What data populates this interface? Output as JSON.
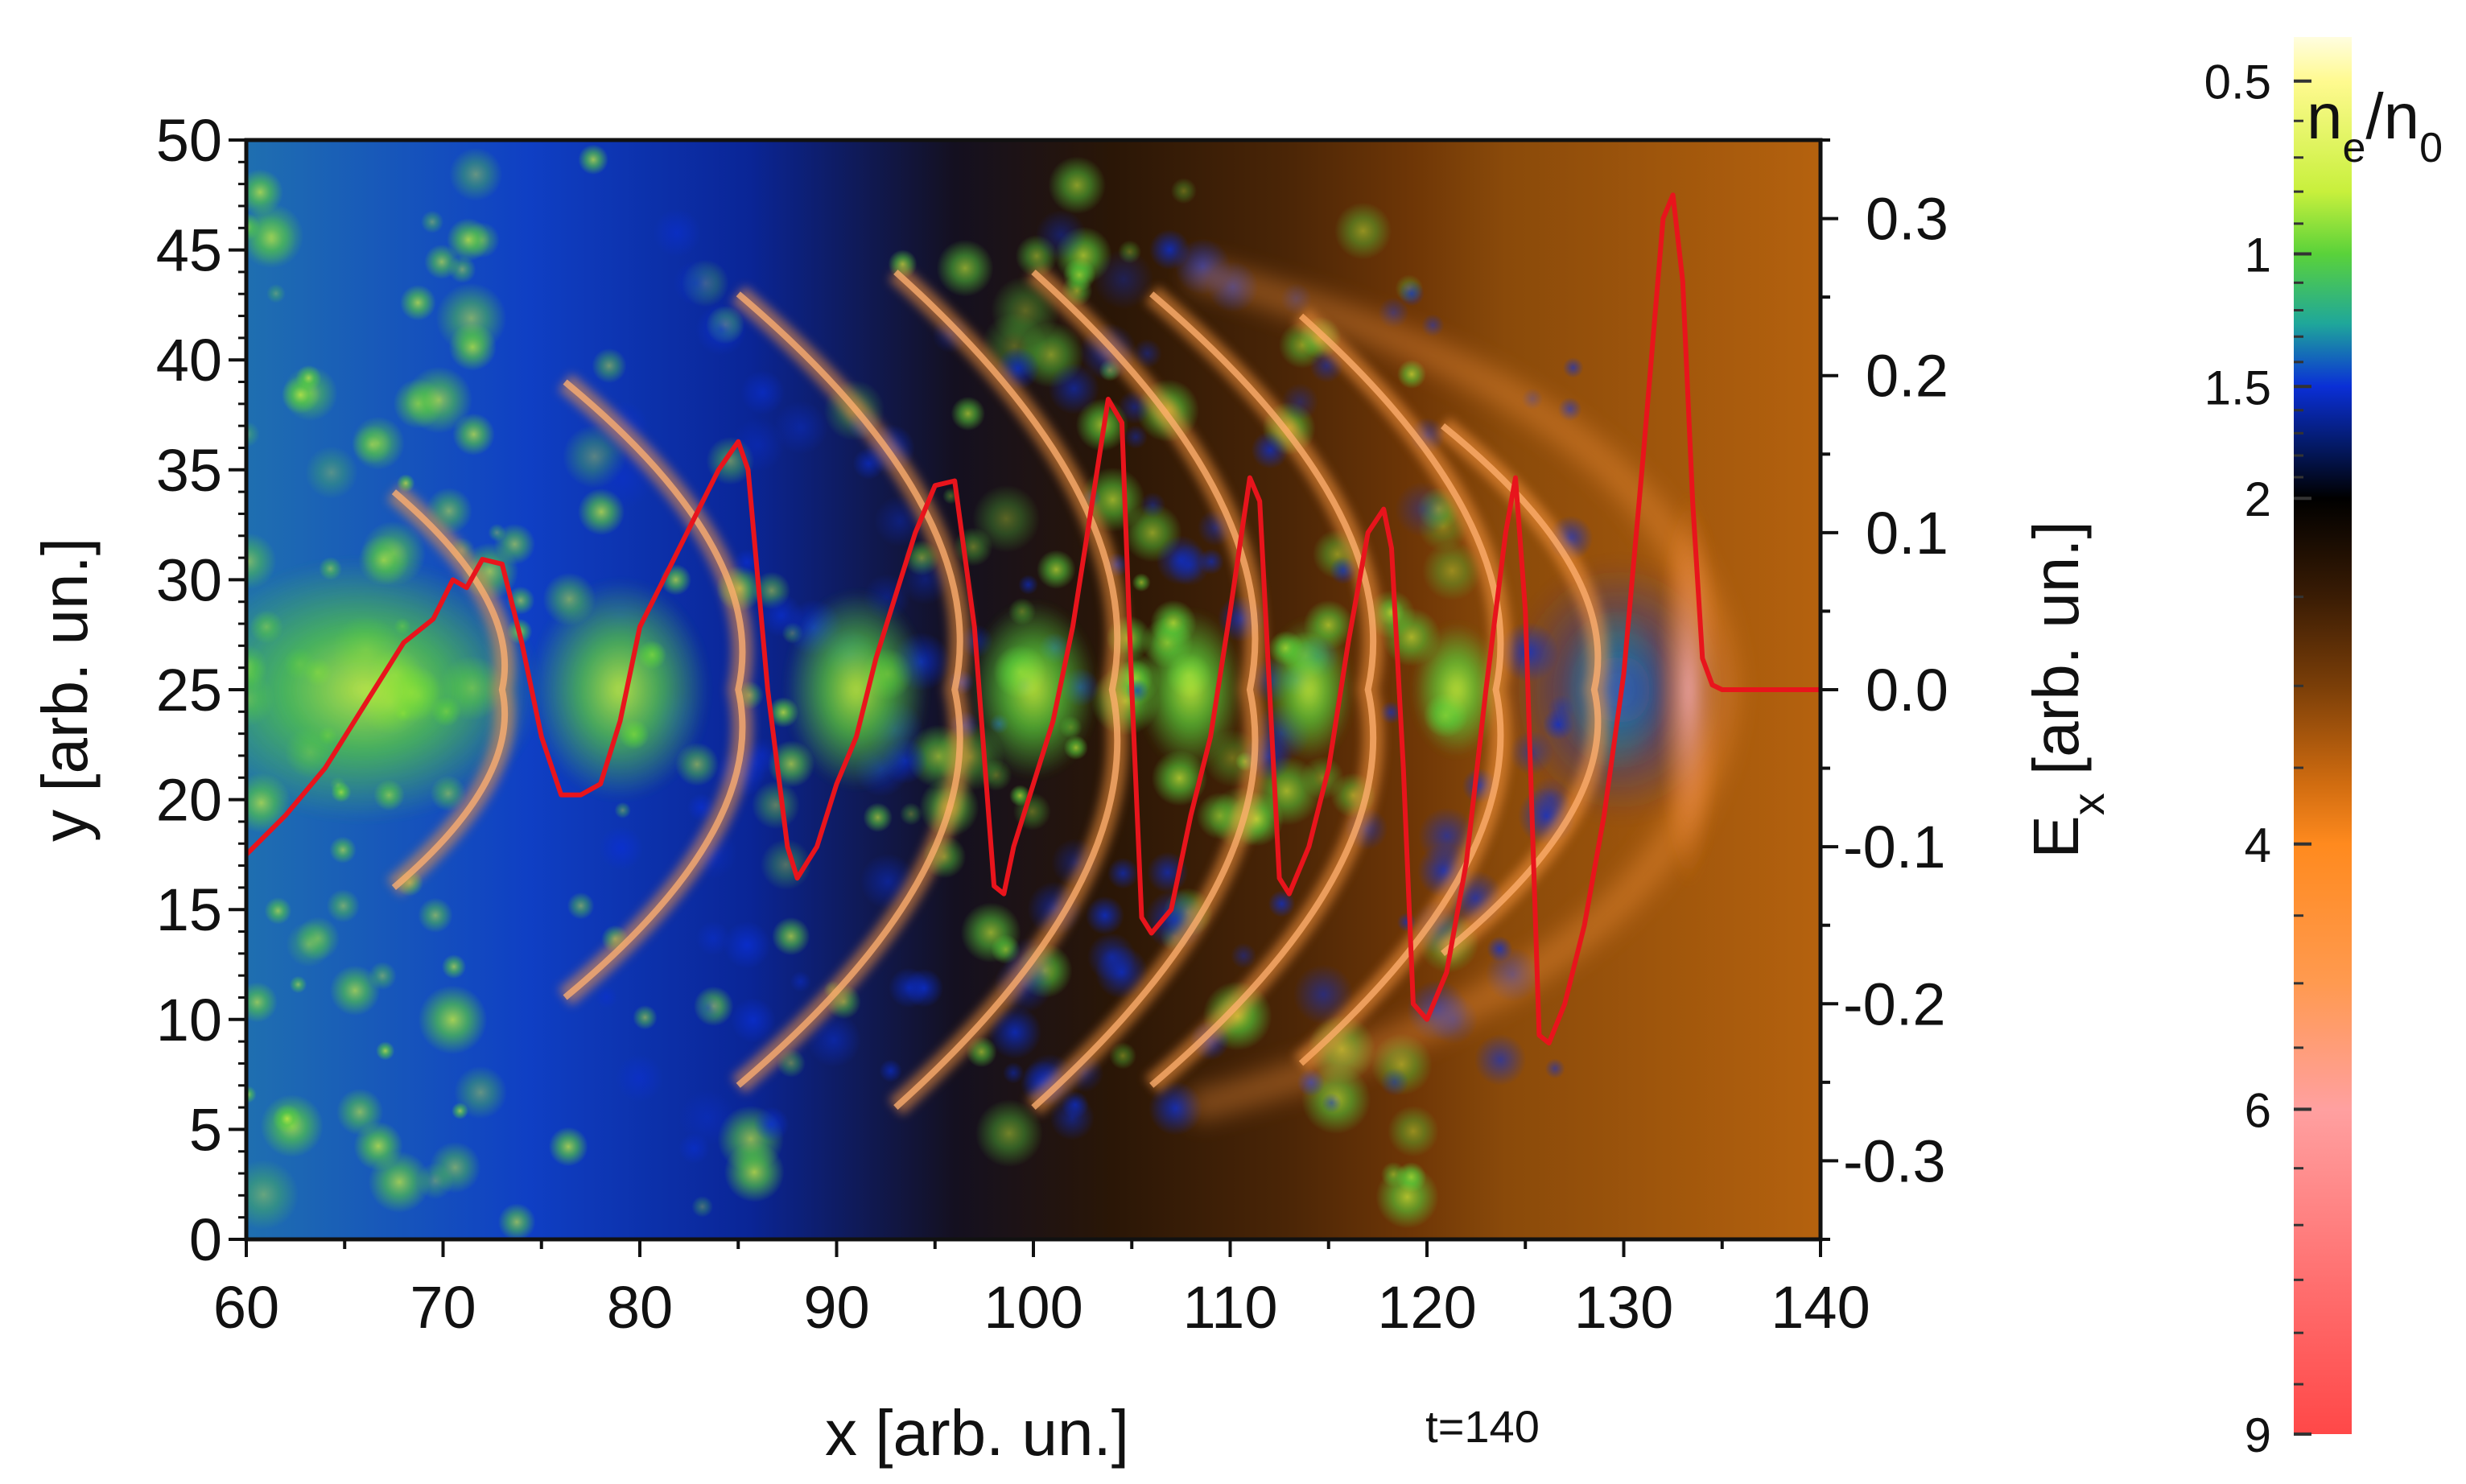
{
  "chart_data": {
    "type": "heatmap",
    "title": "",
    "time_label": "t=140",
    "x_axis": {
      "label": "x [arb. un.]",
      "range": [
        60,
        140
      ],
      "ticks": [
        60,
        70,
        80,
        90,
        100,
        110,
        120,
        130,
        140
      ]
    },
    "y_axis": {
      "label": "y [arb. un.]",
      "range": [
        0,
        50
      ],
      "ticks": [
        0,
        5,
        10,
        15,
        20,
        25,
        30,
        35,
        40,
        45,
        50
      ]
    },
    "y2_axis": {
      "label_main": "E",
      "label_sub": "x",
      "label_rest": " [arb. un.]",
      "range": [
        -0.35,
        0.35
      ],
      "ticks": [
        -0.3,
        -0.2,
        -0.1,
        0.0,
        0.1,
        0.2,
        0.3
      ]
    },
    "colorbar": {
      "label_main": "n",
      "label_sub_1": "e",
      "label_mid": "/n",
      "label_sub_2": "0",
      "scale": "sqrt",
      "range": [
        0.4,
        9
      ],
      "ticks": [
        0.5,
        1,
        1.5,
        2,
        4,
        6,
        9
      ],
      "colors": [
        {
          "v": 0.4,
          "c": "#fffde0"
        },
        {
          "v": 0.5,
          "c": "#fffa90"
        },
        {
          "v": 0.8,
          "c": "#c8f03c"
        },
        {
          "v": 1.0,
          "c": "#5ad23a"
        },
        {
          "v": 1.25,
          "c": "#1fa79a"
        },
        {
          "v": 1.5,
          "c": "#0a2fd6"
        },
        {
          "v": 1.75,
          "c": "#041a68"
        },
        {
          "v": 2.0,
          "c": "#000000"
        },
        {
          "v": 2.5,
          "c": "#3a1c04"
        },
        {
          "v": 3.0,
          "c": "#7a3e08"
        },
        {
          "v": 3.6,
          "c": "#d06c10"
        },
        {
          "v": 4.0,
          "c": "#ff8a1e"
        },
        {
          "v": 5.0,
          "c": "#ff9a50"
        },
        {
          "v": 6.0,
          "c": "#ffa0a0"
        },
        {
          "v": 7.5,
          "c": "#ff7070"
        },
        {
          "v": 9.0,
          "c": "#ff4848"
        }
      ]
    },
    "series": [
      {
        "axis": "y2",
        "color": "#e8141c",
        "x": [
          60,
          62,
          64,
          66,
          68,
          69.5,
          70.5,
          71.2,
          72,
          73,
          74,
          75,
          76,
          77,
          78,
          79,
          80,
          81,
          82,
          83,
          84,
          85,
          85.5,
          86.5,
          87.5,
          88,
          89,
          90,
          91,
          92,
          93,
          94,
          95,
          96,
          97,
          98,
          98.5,
          99,
          100,
          101,
          102,
          103,
          103.8,
          104.5,
          105,
          105.5,
          106,
          107,
          108,
          109,
          110,
          111,
          111.5,
          112,
          112.5,
          113,
          114,
          115,
          116,
          117,
          117.8,
          118.2,
          118.8,
          119.3,
          120,
          121,
          122,
          123,
          124,
          124.5,
          125,
          125.7,
          126.2,
          127,
          128,
          129,
          130,
          131,
          132,
          132.5,
          133,
          133.5,
          134,
          134.5,
          135,
          136,
          138,
          140
        ],
        "y": [
          -0.105,
          -0.08,
          -0.05,
          -0.01,
          0.03,
          0.045,
          0.07,
          0.065,
          0.083,
          0.08,
          0.03,
          -0.03,
          -0.067,
          -0.067,
          -0.06,
          -0.02,
          0.04,
          0.065,
          0.09,
          0.115,
          0.14,
          0.158,
          0.14,
          0.0,
          -0.1,
          -0.12,
          -0.1,
          -0.06,
          -0.03,
          0.02,
          0.06,
          0.1,
          0.13,
          0.133,
          0.04,
          -0.125,
          -0.13,
          -0.1,
          -0.06,
          -0.02,
          0.04,
          0.12,
          0.185,
          0.17,
          0.0,
          -0.145,
          -0.155,
          -0.14,
          -0.08,
          -0.03,
          0.05,
          0.135,
          0.12,
          0.0,
          -0.12,
          -0.13,
          -0.1,
          -0.05,
          0.03,
          0.1,
          0.115,
          0.09,
          -0.05,
          -0.2,
          -0.21,
          -0.18,
          -0.11,
          0.0,
          0.1,
          0.135,
          0.05,
          -0.22,
          -0.225,
          -0.2,
          -0.15,
          -0.08,
          0.01,
          0.15,
          0.3,
          0.315,
          0.26,
          0.12,
          0.02,
          0.003,
          0.0,
          0.0,
          0.0,
          0.0
        ]
      }
    ]
  }
}
